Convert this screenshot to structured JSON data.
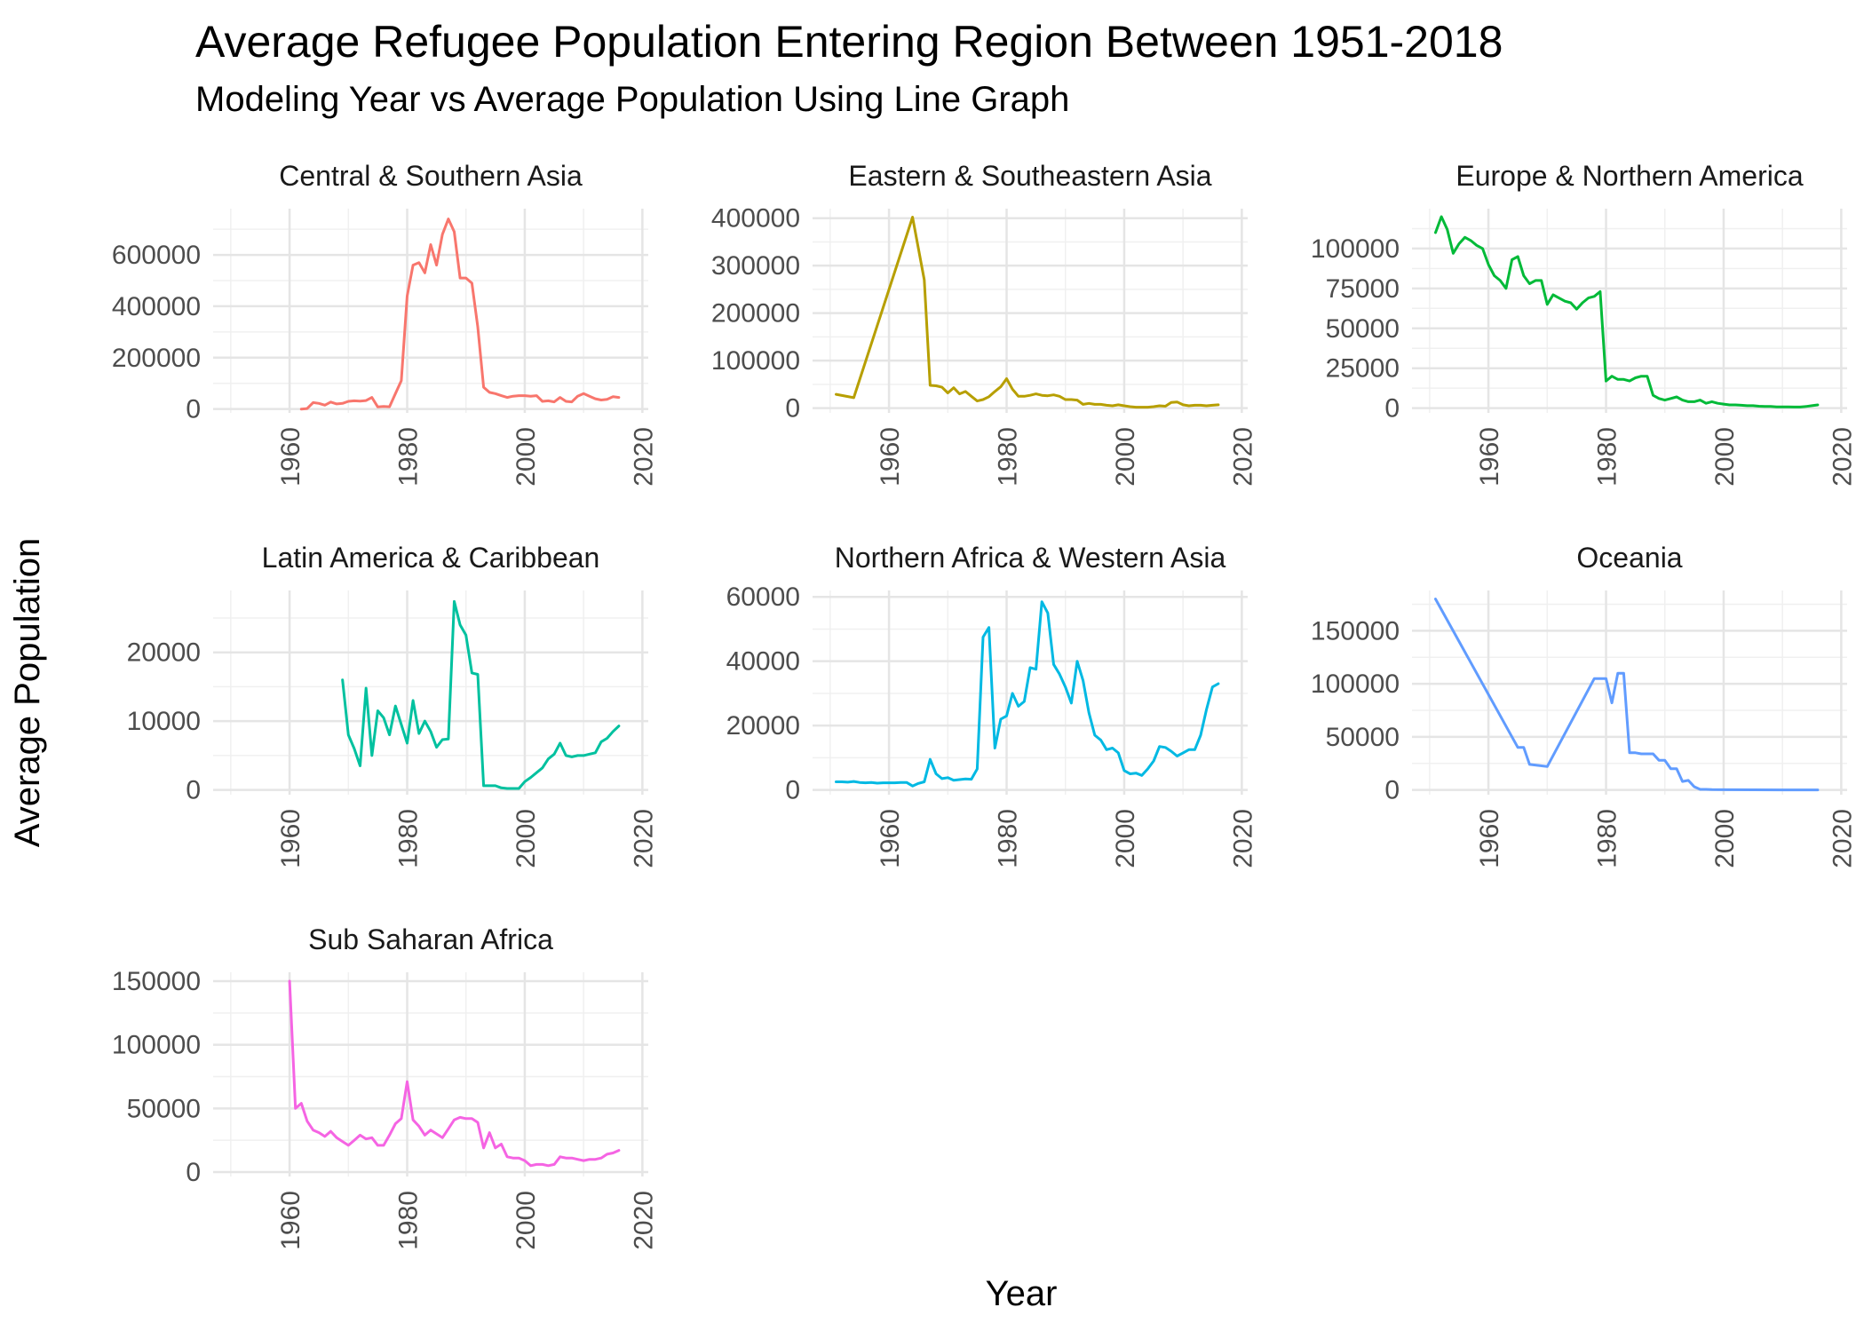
{
  "chart_data": {
    "type": "line",
    "title": "Average Refugee Population Entering Region Between 1951-2018",
    "subtitle": "Modeling Year vs Average Population Using Line Graph",
    "xlabel": "Year",
    "ylabel": "Average Population",
    "grid": true,
    "legend": "none",
    "xlim": [
      1947,
      2021
    ],
    "x_ticks": [
      1960,
      1980,
      2000,
      2020
    ],
    "panels": [
      {
        "name": "Central & Southern Asia",
        "color": "#F8766D",
        "ylim": [
          -15000,
          780000
        ],
        "y_ticks": [
          0,
          200000,
          400000,
          600000
        ],
        "x": [
          1962,
          1963,
          1964,
          1965,
          1966,
          1967,
          1968,
          1969,
          1970,
          1971,
          1972,
          1973,
          1974,
          1975,
          1976,
          1977,
          1978,
          1979,
          1980,
          1981,
          1982,
          1983,
          1984,
          1985,
          1986,
          1987,
          1988,
          1989,
          1990,
          1991,
          1992,
          1993,
          1994,
          1995,
          1996,
          1997,
          1998,
          1999,
          2000,
          2001,
          2002,
          2003,
          2004,
          2005,
          2006,
          2007,
          2008,
          2009,
          2010,
          2011,
          2012,
          2013,
          2014,
          2015,
          2016
        ],
        "y": [
          0,
          2000,
          25000,
          22000,
          15000,
          27000,
          20000,
          22000,
          30000,
          32000,
          31000,
          33000,
          45000,
          8000,
          10000,
          9000,
          60000,
          110000,
          440000,
          560000,
          570000,
          530000,
          640000,
          560000,
          680000,
          740000,
          690000,
          510000,
          510000,
          490000,
          320000,
          85000,
          65000,
          60000,
          52000,
          45000,
          50000,
          52000,
          52000,
          50000,
          52000,
          30000,
          32000,
          28000,
          45000,
          30000,
          28000,
          50000,
          60000,
          50000,
          40000,
          35000,
          38000,
          48000,
          45000
        ]
      },
      {
        "name": "Eastern & Southeastern Asia",
        "color": "#B79F00",
        "ylim": [
          -10000,
          420000
        ],
        "y_ticks": [
          0,
          100000,
          200000,
          300000,
          400000
        ],
        "x": [
          1951,
          1954,
          1964,
          1966,
          1967,
          1968,
          1969,
          1970,
          1971,
          1972,
          1973,
          1974,
          1975,
          1976,
          1977,
          1978,
          1979,
          1980,
          1981,
          1982,
          1983,
          1984,
          1985,
          1986,
          1987,
          1988,
          1989,
          1990,
          1991,
          1992,
          1993,
          1994,
          1995,
          1996,
          1997,
          1998,
          1999,
          2000,
          2001,
          2002,
          2003,
          2004,
          2005,
          2006,
          2007,
          2008,
          2009,
          2010,
          2011,
          2012,
          2013,
          2014,
          2015,
          2016
        ],
        "y": [
          29000,
          22000,
          402000,
          270000,
          48000,
          47000,
          44000,
          32000,
          43000,
          30000,
          35000,
          25000,
          15000,
          18000,
          24000,
          35000,
          45000,
          62000,
          40000,
          25000,
          25000,
          27000,
          30000,
          27000,
          26000,
          28000,
          25000,
          18000,
          18000,
          17000,
          8000,
          10000,
          8000,
          8000,
          6000,
          5000,
          7000,
          5000,
          3000,
          2000,
          2000,
          2000,
          3000,
          5000,
          4000,
          12000,
          13000,
          7000,
          5000,
          6000,
          6000,
          5000,
          6000,
          7000
        ]
      },
      {
        "name": "Europe & Northern America",
        "color": "#00BA38",
        "ylim": [
          -3000,
          125000
        ],
        "y_ticks": [
          0,
          25000,
          50000,
          75000,
          100000
        ],
        "x": [
          1951,
          1952,
          1953,
          1954,
          1955,
          1956,
          1957,
          1958,
          1959,
          1960,
          1961,
          1962,
          1963,
          1964,
          1965,
          1966,
          1967,
          1968,
          1969,
          1970,
          1971,
          1972,
          1973,
          1974,
          1975,
          1976,
          1977,
          1978,
          1979,
          1980,
          1981,
          1982,
          1983,
          1984,
          1985,
          1986,
          1987,
          1988,
          1989,
          1990,
          1991,
          1992,
          1993,
          1994,
          1995,
          1996,
          1997,
          1998,
          1999,
          2000,
          2001,
          2002,
          2003,
          2004,
          2005,
          2006,
          2007,
          2008,
          2009,
          2010,
          2011,
          2012,
          2013,
          2014,
          2015,
          2016
        ],
        "y": [
          110000,
          120000,
          112000,
          97000,
          103000,
          107000,
          105000,
          102000,
          100000,
          90000,
          83000,
          80000,
          75000,
          93000,
          95000,
          83000,
          78000,
          80000,
          80000,
          65000,
          71000,
          69000,
          67000,
          66000,
          62000,
          66000,
          69000,
          70000,
          73000,
          17000,
          20000,
          18000,
          18000,
          17000,
          19000,
          20000,
          20000,
          8000,
          6000,
          5000,
          6000,
          7000,
          5000,
          4000,
          4000,
          5000,
          3000,
          4000,
          3000,
          2500,
          2000,
          2000,
          1800,
          1500,
          1500,
          1200,
          1000,
          1000,
          800,
          800,
          800,
          700,
          700,
          1000,
          1500,
          2000
        ]
      },
      {
        "name": "Latin America & Caribbean",
        "color": "#00C19F",
        "ylim": [
          -700,
          29000
        ],
        "y_ticks": [
          0,
          10000,
          20000
        ],
        "x": [
          1969,
          1970,
          1971,
          1972,
          1973,
          1974,
          1975,
          1976,
          1977,
          1978,
          1979,
          1980,
          1981,
          1982,
          1983,
          1984,
          1985,
          1986,
          1987,
          1988,
          1989,
          1990,
          1991,
          1992,
          1993,
          1994,
          1995,
          1996,
          1997,
          1998,
          1999,
          2000,
          2001,
          2002,
          2003,
          2004,
          2005,
          2006,
          2007,
          2008,
          2009,
          2010,
          2011,
          2012,
          2013,
          2014,
          2015,
          2016
        ],
        "y": [
          16000,
          8000,
          6000,
          3500,
          14800,
          5000,
          11500,
          10500,
          8000,
          12200,
          9500,
          6800,
          13000,
          8200,
          10000,
          8500,
          6200,
          7300,
          7400,
          27400,
          24000,
          22500,
          17000,
          16800,
          600,
          600,
          600,
          300,
          200,
          200,
          200,
          1200,
          1800,
          2500,
          3200,
          4500,
          5200,
          6800,
          5000,
          4800,
          5000,
          5000,
          5200,
          5400,
          7000,
          7500,
          8500,
          9300
        ]
      },
      {
        "name": "Northern Africa & Western Asia",
        "color": "#00B9E3",
        "ylim": [
          -1500,
          62000
        ],
        "y_ticks": [
          0,
          20000,
          40000,
          60000
        ],
        "x": [
          1951,
          1952,
          1953,
          1954,
          1955,
          1956,
          1957,
          1958,
          1959,
          1960,
          1961,
          1962,
          1963,
          1964,
          1965,
          1966,
          1967,
          1968,
          1969,
          1970,
          1971,
          1972,
          1973,
          1974,
          1975,
          1976,
          1977,
          1978,
          1979,
          1980,
          1981,
          1982,
          1983,
          1984,
          1985,
          1986,
          1987,
          1988,
          1989,
          1990,
          1991,
          1992,
          1993,
          1994,
          1995,
          1996,
          1997,
          1998,
          1999,
          2000,
          2001,
          2002,
          2003,
          2004,
          2005,
          2006,
          2007,
          2008,
          2009,
          2010,
          2011,
          2012,
          2013,
          2014,
          2015,
          2016
        ],
        "y": [
          2500,
          2500,
          2400,
          2600,
          2300,
          2200,
          2300,
          2100,
          2200,
          2200,
          2200,
          2300,
          2300,
          1200,
          2000,
          2500,
          9500,
          5000,
          3500,
          3800,
          3000,
          3200,
          3400,
          3300,
          6500,
          47500,
          50500,
          13000,
          22000,
          23000,
          30000,
          26000,
          27500,
          38000,
          37500,
          58500,
          55000,
          39000,
          36000,
          32000,
          27000,
          40000,
          34000,
          24000,
          17000,
          15500,
          12500,
          13000,
          11500,
          6000,
          5000,
          5200,
          4500,
          6500,
          9000,
          13500,
          13200,
          12000,
          10500,
          11500,
          12500,
          12500,
          17000,
          25000,
          32000,
          33000
        ]
      },
      {
        "name": "Oceania",
        "color": "#619CFF",
        "ylim": [
          -4500,
          188000
        ],
        "y_ticks": [
          0,
          50000,
          100000,
          150000
        ],
        "x": [
          1951,
          1965,
          1966,
          1967,
          1970,
          1978,
          1980,
          1981,
          1982,
          1983,
          1984,
          1985,
          1986,
          1987,
          1988,
          1989,
          1990,
          1991,
          1992,
          1993,
          1994,
          1995,
          1996,
          1997,
          1998,
          2000,
          2005,
          2010,
          2016
        ],
        "y": [
          180000,
          40000,
          40000,
          24000,
          22000,
          105000,
          105000,
          82000,
          110000,
          110000,
          35000,
          35000,
          34000,
          34000,
          34000,
          28000,
          28000,
          20000,
          20000,
          8000,
          9000,
          3000,
          500,
          500,
          300,
          200,
          100,
          50,
          20
        ]
      },
      {
        "name": "Sub Saharan Africa",
        "color": "#F564E3",
        "ylim": [
          -3500,
          157000
        ],
        "y_ticks": [
          0,
          50000,
          100000,
          150000
        ],
        "x": [
          1960,
          1961,
          1962,
          1963,
          1964,
          1965,
          1966,
          1967,
          1968,
          1969,
          1970,
          1971,
          1972,
          1973,
          1974,
          1975,
          1976,
          1977,
          1978,
          1979,
          1980,
          1981,
          1982,
          1983,
          1984,
          1985,
          1986,
          1987,
          1988,
          1989,
          1990,
          1991,
          1992,
          1993,
          1994,
          1995,
          1996,
          1997,
          1998,
          1999,
          2000,
          2001,
          2002,
          2003,
          2004,
          2005,
          2006,
          2007,
          2008,
          2009,
          2010,
          2011,
          2012,
          2013,
          2014,
          2015,
          2016
        ],
        "y": [
          150000,
          50000,
          54000,
          40000,
          33000,
          31000,
          28000,
          32000,
          27000,
          24000,
          21000,
          25000,
          29000,
          26000,
          27000,
          21000,
          21000,
          29000,
          38000,
          42000,
          71000,
          41000,
          36000,
          29000,
          33000,
          30000,
          27000,
          34000,
          41000,
          43000,
          42000,
          42000,
          39000,
          19000,
          31000,
          19000,
          22000,
          12000,
          11000,
          11000,
          9000,
          5000,
          6000,
          6000,
          5000,
          6000,
          12000,
          11000,
          11000,
          10000,
          9000,
          10000,
          10000,
          11000,
          14000,
          15000,
          17000
        ]
      }
    ]
  }
}
